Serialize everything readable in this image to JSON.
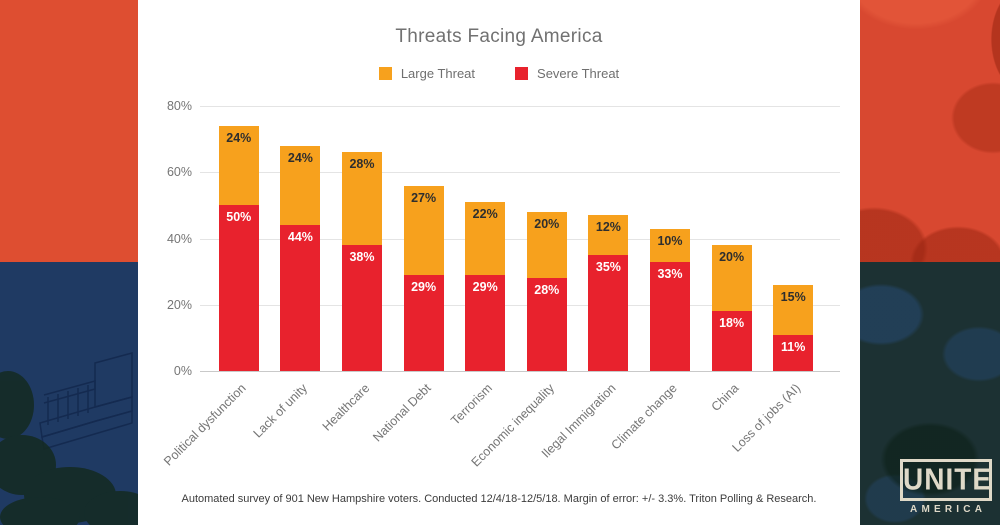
{
  "chart": {
    "title": "Threats Facing America",
    "legend": [
      {
        "label": "Large Threat",
        "color": "#F7A11D"
      },
      {
        "label": "Severe Threat",
        "color": "#E8222D"
      }
    ],
    "footer": "Automated survey of 901 New Hampshire voters. Conducted 12/4/18-12/5/18. Margin of error: +/- 3.3%. Triton Polling & Research."
  },
  "chart_data": {
    "type": "bar",
    "stacked": true,
    "title": "Threats Facing America",
    "categories": [
      "Political dysfunction",
      "Lack of unity",
      "Healthcare",
      "National Debt",
      "Terrorism",
      "Economic inequality",
      "Ilegal Immigration",
      "Climate change",
      "China",
      "Loss of jobs (AI)"
    ],
    "series": [
      {
        "name": "Severe Threat",
        "color": "#E8222D",
        "label_color": "#FFFFFF",
        "values": [
          50,
          44,
          38,
          29,
          29,
          28,
          35,
          33,
          18,
          11
        ]
      },
      {
        "name": "Large Threat",
        "color": "#F7A11D",
        "label_color": "#2E2E2E",
        "values": [
          24,
          24,
          28,
          27,
          22,
          20,
          12,
          10,
          20,
          15
        ]
      }
    ],
    "value_suffix": "%",
    "xlabel": "",
    "ylabel": "",
    "ylim": [
      0,
      80
    ],
    "yticks": [
      "0%",
      "20%",
      "40%",
      "60%",
      "80%"
    ],
    "grid": true,
    "legend_position": "top"
  },
  "logo": {
    "line1": "UNITE",
    "line2": "AMERICA"
  },
  "colors": {
    "bg_orange": "#DE4E31",
    "bg_navy": "#1F3A63",
    "bg_red_photo": "#D84830",
    "bg_dark_teal": "#1C3133",
    "card_bg": "#FFFFFF",
    "grid_line": "#E4E4E4",
    "axis_text": "#757575",
    "logo_cream": "#DFD9C8"
  }
}
